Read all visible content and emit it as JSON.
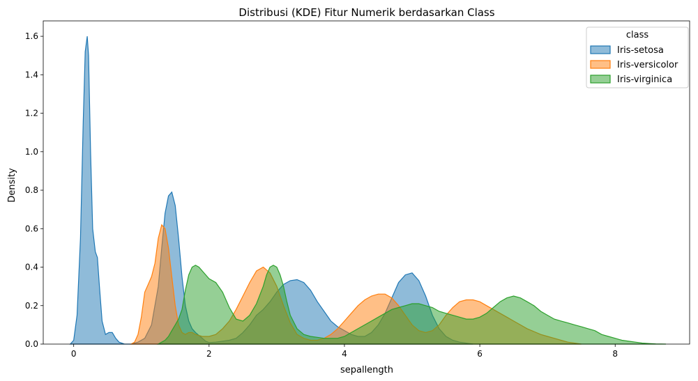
{
  "chart_data": {
    "type": "area",
    "title": "Distribusi (KDE) Fitur Numerik berdasarkan Class",
    "xlabel": "sepallength",
    "ylabel": "Density",
    "xlim": [
      -0.45,
      9.1
    ],
    "ylim": [
      0,
      1.68
    ],
    "x_ticks": [
      0,
      2,
      4,
      6,
      8
    ],
    "x_tick_labels": [
      "0",
      "2",
      "4",
      "6",
      "8"
    ],
    "y_ticks": [
      0.0,
      0.2,
      0.4,
      0.6,
      0.8,
      1.0,
      1.2,
      1.4,
      1.6
    ],
    "y_tick_labels": [
      "0.0",
      "0.2",
      "0.4",
      "0.6",
      "0.8",
      "1.0",
      "1.2",
      "1.4",
      "1.6"
    ],
    "grid": false,
    "legend": {
      "title": "class",
      "placement": "upper-right",
      "entries": [
        "Iris-setosa",
        "Iris-versicolor",
        "Iris-virginica"
      ]
    },
    "series": [
      {
        "name": "Iris-setosa",
        "color": "#1f77b4",
        "x": [
          -0.05,
          0.0,
          0.05,
          0.1,
          0.14,
          0.17,
          0.2,
          0.22,
          0.25,
          0.28,
          0.32,
          0.35,
          0.38,
          0.42,
          0.47,
          0.52,
          0.57,
          0.62,
          0.67,
          0.75,
          0.85,
          0.95,
          1.05,
          1.15,
          1.25,
          1.3,
          1.35,
          1.4,
          1.45,
          1.5,
          1.55,
          1.6,
          1.65,
          1.7,
          1.75,
          1.8,
          1.85,
          1.9,
          1.95,
          2.0,
          2.1,
          2.2,
          2.3,
          2.4,
          2.5,
          2.6,
          2.7,
          2.8,
          2.9,
          3.0,
          3.1,
          3.2,
          3.3,
          3.4,
          3.5,
          3.6,
          3.7,
          3.8,
          3.9,
          4.0,
          4.1,
          4.2,
          4.3,
          4.4,
          4.5,
          4.6,
          4.7,
          4.8,
          4.9,
          5.0,
          5.1,
          5.2,
          5.3,
          5.4,
          5.5,
          5.6,
          5.7,
          5.8,
          5.9
        ],
        "y": [
          0.0,
          0.02,
          0.15,
          0.55,
          1.15,
          1.52,
          1.6,
          1.5,
          1.0,
          0.6,
          0.48,
          0.45,
          0.3,
          0.12,
          0.05,
          0.06,
          0.06,
          0.03,
          0.01,
          0.0,
          0.0,
          0.01,
          0.03,
          0.1,
          0.3,
          0.5,
          0.68,
          0.77,
          0.79,
          0.72,
          0.55,
          0.35,
          0.2,
          0.12,
          0.08,
          0.06,
          0.045,
          0.03,
          0.015,
          0.008,
          0.01,
          0.015,
          0.02,
          0.03,
          0.06,
          0.1,
          0.15,
          0.18,
          0.22,
          0.27,
          0.31,
          0.33,
          0.335,
          0.32,
          0.28,
          0.22,
          0.17,
          0.12,
          0.09,
          0.07,
          0.05,
          0.04,
          0.04,
          0.06,
          0.1,
          0.16,
          0.24,
          0.32,
          0.36,
          0.37,
          0.33,
          0.25,
          0.15,
          0.08,
          0.04,
          0.02,
          0.01,
          0.005,
          0.0
        ]
      },
      {
        "name": "Iris-versicolor",
        "color": "#ff7f0e",
        "x": [
          0.85,
          0.9,
          0.95,
          1.0,
          1.05,
          1.1,
          1.15,
          1.2,
          1.25,
          1.3,
          1.35,
          1.4,
          1.45,
          1.5,
          1.55,
          1.6,
          1.65,
          1.7,
          1.75,
          1.8,
          1.9,
          2.0,
          2.1,
          2.2,
          2.3,
          2.4,
          2.5,
          2.6,
          2.7,
          2.8,
          2.9,
          3.0,
          3.1,
          3.2,
          3.3,
          3.4,
          3.5,
          3.6,
          3.7,
          3.8,
          3.9,
          4.0,
          4.1,
          4.2,
          4.3,
          4.4,
          4.5,
          4.6,
          4.7,
          4.8,
          4.9,
          5.0,
          5.1,
          5.2,
          5.3,
          5.4,
          5.5,
          5.6,
          5.7,
          5.8,
          5.9,
          6.0,
          6.1,
          6.2,
          6.3,
          6.4,
          6.5,
          6.6,
          6.7,
          6.8,
          6.9,
          7.0,
          7.1,
          7.2,
          7.3,
          7.4,
          7.5
        ],
        "y": [
          0.0,
          0.01,
          0.05,
          0.14,
          0.27,
          0.31,
          0.35,
          0.42,
          0.55,
          0.62,
          0.6,
          0.5,
          0.35,
          0.2,
          0.1,
          0.06,
          0.05,
          0.06,
          0.06,
          0.05,
          0.04,
          0.04,
          0.05,
          0.08,
          0.12,
          0.18,
          0.25,
          0.32,
          0.38,
          0.4,
          0.37,
          0.3,
          0.2,
          0.11,
          0.05,
          0.03,
          0.02,
          0.02,
          0.03,
          0.05,
          0.08,
          0.12,
          0.16,
          0.2,
          0.23,
          0.25,
          0.26,
          0.26,
          0.24,
          0.2,
          0.15,
          0.1,
          0.07,
          0.06,
          0.07,
          0.1,
          0.15,
          0.19,
          0.22,
          0.23,
          0.23,
          0.22,
          0.2,
          0.18,
          0.16,
          0.14,
          0.12,
          0.1,
          0.08,
          0.065,
          0.05,
          0.04,
          0.03,
          0.02,
          0.01,
          0.005,
          0.0
        ]
      },
      {
        "name": "Iris-virginica",
        "color": "#2ca02c",
        "x": [
          1.25,
          1.3,
          1.35,
          1.4,
          1.45,
          1.5,
          1.55,
          1.6,
          1.65,
          1.7,
          1.75,
          1.8,
          1.85,
          1.9,
          1.95,
          2.0,
          2.1,
          2.2,
          2.3,
          2.4,
          2.5,
          2.6,
          2.7,
          2.8,
          2.85,
          2.9,
          2.95,
          3.0,
          3.05,
          3.1,
          3.15,
          3.2,
          3.3,
          3.4,
          3.5,
          3.6,
          3.7,
          3.8,
          3.9,
          4.0,
          4.1,
          4.2,
          4.3,
          4.4,
          4.5,
          4.6,
          4.7,
          4.8,
          4.9,
          5.0,
          5.1,
          5.2,
          5.3,
          5.4,
          5.5,
          5.6,
          5.7,
          5.8,
          5.9,
          6.0,
          6.1,
          6.2,
          6.3,
          6.4,
          6.5,
          6.6,
          6.7,
          6.8,
          6.9,
          7.0,
          7.1,
          7.2,
          7.3,
          7.4,
          7.5,
          7.6,
          7.7,
          7.8,
          7.9,
          8.0,
          8.1,
          8.2,
          8.3,
          8.4,
          8.5,
          8.6,
          8.75
        ],
        "y": [
          0.0,
          0.01,
          0.02,
          0.04,
          0.07,
          0.1,
          0.13,
          0.18,
          0.28,
          0.36,
          0.4,
          0.41,
          0.4,
          0.38,
          0.36,
          0.34,
          0.32,
          0.27,
          0.19,
          0.13,
          0.12,
          0.15,
          0.21,
          0.3,
          0.36,
          0.4,
          0.41,
          0.4,
          0.36,
          0.3,
          0.22,
          0.15,
          0.08,
          0.05,
          0.04,
          0.035,
          0.03,
          0.03,
          0.03,
          0.04,
          0.06,
          0.08,
          0.1,
          0.12,
          0.14,
          0.16,
          0.18,
          0.19,
          0.2,
          0.21,
          0.21,
          0.2,
          0.19,
          0.17,
          0.16,
          0.15,
          0.14,
          0.13,
          0.13,
          0.14,
          0.16,
          0.19,
          0.22,
          0.24,
          0.25,
          0.24,
          0.22,
          0.2,
          0.17,
          0.15,
          0.13,
          0.12,
          0.11,
          0.1,
          0.09,
          0.08,
          0.07,
          0.05,
          0.04,
          0.03,
          0.02,
          0.015,
          0.01,
          0.005,
          0.003,
          0.001,
          0.0
        ]
      }
    ]
  }
}
